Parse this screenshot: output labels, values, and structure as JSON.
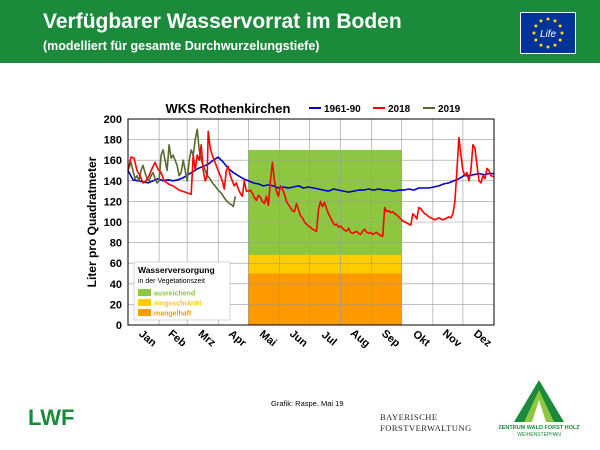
{
  "header": {
    "title": "Verfügbarer Wasservorrat im Boden",
    "subtitle": "(modelliert für gesamte Durchwurzelungstiefe)",
    "bg_color": "#1b8a3b"
  },
  "eu_logo_text": "Life",
  "chart_data": {
    "type": "line",
    "title": "WKS Rothenkirchen",
    "xlabel": "",
    "ylabel": "Liter pro Quadratmeter",
    "ylim": [
      0,
      200
    ],
    "yticks": [
      0,
      20,
      40,
      60,
      80,
      100,
      120,
      140,
      160,
      180,
      200
    ],
    "xlim": [
      0,
      365
    ],
    "month_labels": [
      "Jan",
      "Feb",
      "Mrz",
      "Apr",
      "Mai",
      "Jun",
      "Jul",
      "Aug",
      "Sep",
      "Okt",
      "Nov",
      "Dez"
    ],
    "month_starts": [
      0,
      31,
      59,
      90,
      120,
      151,
      181,
      212,
      243,
      273,
      304,
      334
    ],
    "grid": true,
    "legend_position": "top",
    "vegetation_band": {
      "x_start": 120,
      "x_end": 273,
      "zones": [
        {
          "label": "ausreichend",
          "from": 68,
          "to": 170,
          "color": "#8dc63f"
        },
        {
          "label": "eingeschränkt",
          "from": 50,
          "to": 68,
          "color": "#ffcc00"
        },
        {
          "label": "mangelhaft",
          "from": 0,
          "to": 50,
          "color": "#ff9900"
        }
      ]
    },
    "supply_legend": {
      "title": "Wasserversorgung",
      "subtitle": "in der Vegetationszeit",
      "items": [
        {
          "label": "ausreichend",
          "color": "#8dc63f"
        },
        {
          "label": "eingeschränkt",
          "color": "#ffcc00"
        },
        {
          "label": "mangelhaft",
          "color": "#ff9900"
        }
      ]
    },
    "series": [
      {
        "name": "1961-90",
        "color": "#0000cc",
        "points": [
          [
            0,
            150
          ],
          [
            5,
            141
          ],
          [
            10,
            140
          ],
          [
            15,
            139
          ],
          [
            20,
            138
          ],
          [
            25,
            140
          ],
          [
            30,
            142
          ],
          [
            35,
            140
          ],
          [
            40,
            141
          ],
          [
            45,
            140
          ],
          [
            50,
            141
          ],
          [
            55,
            143
          ],
          [
            60,
            146
          ],
          [
            65,
            149
          ],
          [
            70,
            152
          ],
          [
            75,
            154
          ],
          [
            80,
            156
          ],
          [
            85,
            160
          ],
          [
            90,
            163
          ],
          [
            95,
            158
          ],
          [
            100,
            152
          ],
          [
            105,
            148
          ],
          [
            110,
            145
          ],
          [
            115,
            142
          ],
          [
            120,
            140
          ],
          [
            125,
            138
          ],
          [
            130,
            137
          ],
          [
            135,
            135
          ],
          [
            140,
            136
          ],
          [
            145,
            135
          ],
          [
            150,
            133
          ],
          [
            155,
            134
          ],
          [
            160,
            133
          ],
          [
            165,
            134
          ],
          [
            170,
            135
          ],
          [
            175,
            133
          ],
          [
            180,
            134
          ],
          [
            185,
            133
          ],
          [
            190,
            132
          ],
          [
            195,
            131
          ],
          [
            200,
            130
          ],
          [
            205,
            132
          ],
          [
            210,
            131
          ],
          [
            215,
            130
          ],
          [
            220,
            129
          ],
          [
            225,
            130
          ],
          [
            230,
            131
          ],
          [
            235,
            131
          ],
          [
            240,
            132
          ],
          [
            245,
            131
          ],
          [
            250,
            132
          ],
          [
            255,
            131
          ],
          [
            260,
            131
          ],
          [
            265,
            130
          ],
          [
            270,
            131
          ],
          [
            275,
            131
          ],
          [
            280,
            132
          ],
          [
            285,
            131
          ],
          [
            290,
            133
          ],
          [
            295,
            133
          ],
          [
            300,
            133
          ],
          [
            305,
            134
          ],
          [
            310,
            135
          ],
          [
            315,
            137
          ],
          [
            320,
            138
          ],
          [
            325,
            140
          ],
          [
            330,
            142
          ],
          [
            335,
            145
          ],
          [
            340,
            145
          ],
          [
            345,
            146
          ],
          [
            350,
            147
          ],
          [
            355,
            146
          ],
          [
            360,
            147
          ],
          [
            365,
            147
          ]
        ]
      },
      {
        "name": "2018",
        "color": "#ff0000",
        "points": [
          [
            0,
            150
          ],
          [
            3,
            163
          ],
          [
            6,
            162
          ],
          [
            9,
            150
          ],
          [
            12,
            145
          ],
          [
            15,
            138
          ],
          [
            18,
            140
          ],
          [
            21,
            145
          ],
          [
            24,
            152
          ],
          [
            27,
            158
          ],
          [
            30,
            151
          ],
          [
            33,
            148
          ],
          [
            36,
            140
          ],
          [
            39,
            138
          ],
          [
            42,
            136
          ],
          [
            45,
            135
          ],
          [
            48,
            133
          ],
          [
            51,
            131
          ],
          [
            54,
            130
          ],
          [
            57,
            129
          ],
          [
            60,
            128
          ],
          [
            63,
            127
          ],
          [
            65,
            165
          ],
          [
            67,
            150
          ],
          [
            69,
            165
          ],
          [
            71,
            160
          ],
          [
            73,
            175
          ],
          [
            75,
            150
          ],
          [
            77,
            140
          ],
          [
            79,
            145
          ],
          [
            80,
            188
          ],
          [
            82,
            172
          ],
          [
            84,
            165
          ],
          [
            86,
            160
          ],
          [
            88,
            155
          ],
          [
            90,
            150
          ],
          [
            92,
            145
          ],
          [
            94,
            140
          ],
          [
            96,
            132
          ],
          [
            98,
            150
          ],
          [
            100,
            154
          ],
          [
            102,
            145
          ],
          [
            104,
            140
          ],
          [
            106,
            135
          ],
          [
            108,
            138
          ],
          [
            110,
            132
          ],
          [
            112,
            128
          ],
          [
            114,
            125
          ],
          [
            116,
            140
          ],
          [
            118,
            130
          ],
          [
            120,
            130
          ],
          [
            122,
            131
          ],
          [
            124,
            128
          ],
          [
            126,
            124
          ],
          [
            128,
            121
          ],
          [
            130,
            126
          ],
          [
            132,
            124
          ],
          [
            134,
            120
          ],
          [
            136,
            118
          ],
          [
            138,
            125
          ],
          [
            140,
            116
          ],
          [
            142,
            140
          ],
          [
            144,
            158
          ],
          [
            146,
            140
          ],
          [
            148,
            130
          ],
          [
            150,
            125
          ],
          [
            152,
            135
          ],
          [
            154,
            132
          ],
          [
            156,
            127
          ],
          [
            158,
            120
          ],
          [
            160,
            117
          ],
          [
            162,
            114
          ],
          [
            164,
            111
          ],
          [
            166,
            110
          ],
          [
            168,
            118
          ],
          [
            170,
            112
          ],
          [
            172,
            106
          ],
          [
            174,
            104
          ],
          [
            176,
            100
          ],
          [
            178,
            98
          ],
          [
            180,
            96
          ],
          [
            182,
            95
          ],
          [
            184,
            93
          ],
          [
            186,
            92
          ],
          [
            188,
            91
          ],
          [
            190,
            112
          ],
          [
            192,
            120
          ],
          [
            194,
            115
          ],
          [
            196,
            119
          ],
          [
            198,
            113
          ],
          [
            200,
            108
          ],
          [
            202,
            104
          ],
          [
            204,
            100
          ],
          [
            206,
            97
          ],
          [
            208,
            98
          ],
          [
            210,
            95
          ],
          [
            212,
            96
          ],
          [
            214,
            94
          ],
          [
            216,
            92
          ],
          [
            218,
            91
          ],
          [
            220,
            94
          ],
          [
            222,
            90
          ],
          [
            224,
            89
          ],
          [
            226,
            90
          ],
          [
            228,
            91
          ],
          [
            230,
            89
          ],
          [
            232,
            88
          ],
          [
            234,
            91
          ],
          [
            236,
            93
          ],
          [
            238,
            90
          ],
          [
            240,
            89
          ],
          [
            242,
            90
          ],
          [
            244,
            88
          ],
          [
            246,
            89
          ],
          [
            248,
            90
          ],
          [
            250,
            88
          ],
          [
            252,
            87
          ],
          [
            254,
            86
          ],
          [
            256,
            114
          ],
          [
            258,
            110
          ],
          [
            260,
            111
          ],
          [
            262,
            109
          ],
          [
            264,
            110
          ],
          [
            266,
            108
          ],
          [
            268,
            107
          ],
          [
            270,
            105
          ],
          [
            272,
            103
          ],
          [
            274,
            101
          ],
          [
            276,
            100
          ],
          [
            278,
            99
          ],
          [
            280,
            98
          ],
          [
            282,
            97
          ],
          [
            284,
            108
          ],
          [
            286,
            106
          ],
          [
            288,
            103
          ],
          [
            290,
            114
          ],
          [
            292,
            113
          ],
          [
            294,
            110
          ],
          [
            296,
            108
          ],
          [
            298,
            107
          ],
          [
            300,
            105
          ],
          [
            302,
            104
          ],
          [
            304,
            103
          ],
          [
            306,
            102
          ],
          [
            308,
            103
          ],
          [
            310,
            104
          ],
          [
            312,
            103
          ],
          [
            314,
            102
          ],
          [
            316,
            103
          ],
          [
            318,
            104
          ],
          [
            320,
            105
          ],
          [
            322,
            104
          ],
          [
            324,
            108
          ],
          [
            326,
            120
          ],
          [
            328,
            150
          ],
          [
            330,
            182
          ],
          [
            332,
            165
          ],
          [
            334,
            150
          ],
          [
            336,
            145
          ],
          [
            338,
            148
          ],
          [
            340,
            140
          ],
          [
            342,
            150
          ],
          [
            344,
            175
          ],
          [
            346,
            172
          ],
          [
            348,
            155
          ],
          [
            350,
            140
          ],
          [
            352,
            138
          ],
          [
            354,
            145
          ],
          [
            356,
            142
          ],
          [
            358,
            152
          ],
          [
            360,
            150
          ],
          [
            362,
            145
          ],
          [
            365,
            144
          ]
        ]
      },
      {
        "name": "2019",
        "color": "#556b2f",
        "points": [
          [
            0,
            150
          ],
          [
            3,
            158
          ],
          [
            5,
            150
          ],
          [
            7,
            142
          ],
          [
            9,
            145
          ],
          [
            11,
            140
          ],
          [
            13,
            150
          ],
          [
            15,
            155
          ],
          [
            17,
            148
          ],
          [
            19,
            142
          ],
          [
            21,
            140
          ],
          [
            23,
            145
          ],
          [
            25,
            148
          ],
          [
            27,
            142
          ],
          [
            29,
            138
          ],
          [
            31,
            140
          ],
          [
            33,
            165
          ],
          [
            35,
            170
          ],
          [
            37,
            160
          ],
          [
            39,
            150
          ],
          [
            41,
            175
          ],
          [
            43,
            162
          ],
          [
            45,
            165
          ],
          [
            47,
            160
          ],
          [
            49,
            155
          ],
          [
            51,
            145
          ],
          [
            53,
            148
          ],
          [
            55,
            160
          ],
          [
            57,
            150
          ],
          [
            59,
            140
          ],
          [
            61,
            160
          ],
          [
            63,
            170
          ],
          [
            65,
            165
          ],
          [
            67,
            180
          ],
          [
            69,
            190
          ],
          [
            71,
            170
          ],
          [
            73,
            160
          ],
          [
            75,
            155
          ],
          [
            77,
            150
          ],
          [
            79,
            145
          ],
          [
            81,
            143
          ],
          [
            83,
            140
          ],
          [
            85,
            137
          ],
          [
            87,
            135
          ],
          [
            89,
            132
          ],
          [
            91,
            130
          ],
          [
            93,
            128
          ],
          [
            95,
            125
          ],
          [
            97,
            122
          ],
          [
            99,
            120
          ],
          [
            101,
            118
          ],
          [
            103,
            117
          ],
          [
            105,
            115
          ],
          [
            107,
            125
          ]
        ]
      }
    ]
  },
  "footer": {
    "credit": "Grafik: Raspe, Mai 19",
    "lwf_logo": "LWF",
    "bayern_line1": "BAYERISCHE",
    "bayern_line2": "FORSTVERWALTUNG",
    "zentrum_line1": "ZENTRUM WALD FORST HOLZ",
    "zentrum_line2": "WEIHENSTEPHAN"
  }
}
